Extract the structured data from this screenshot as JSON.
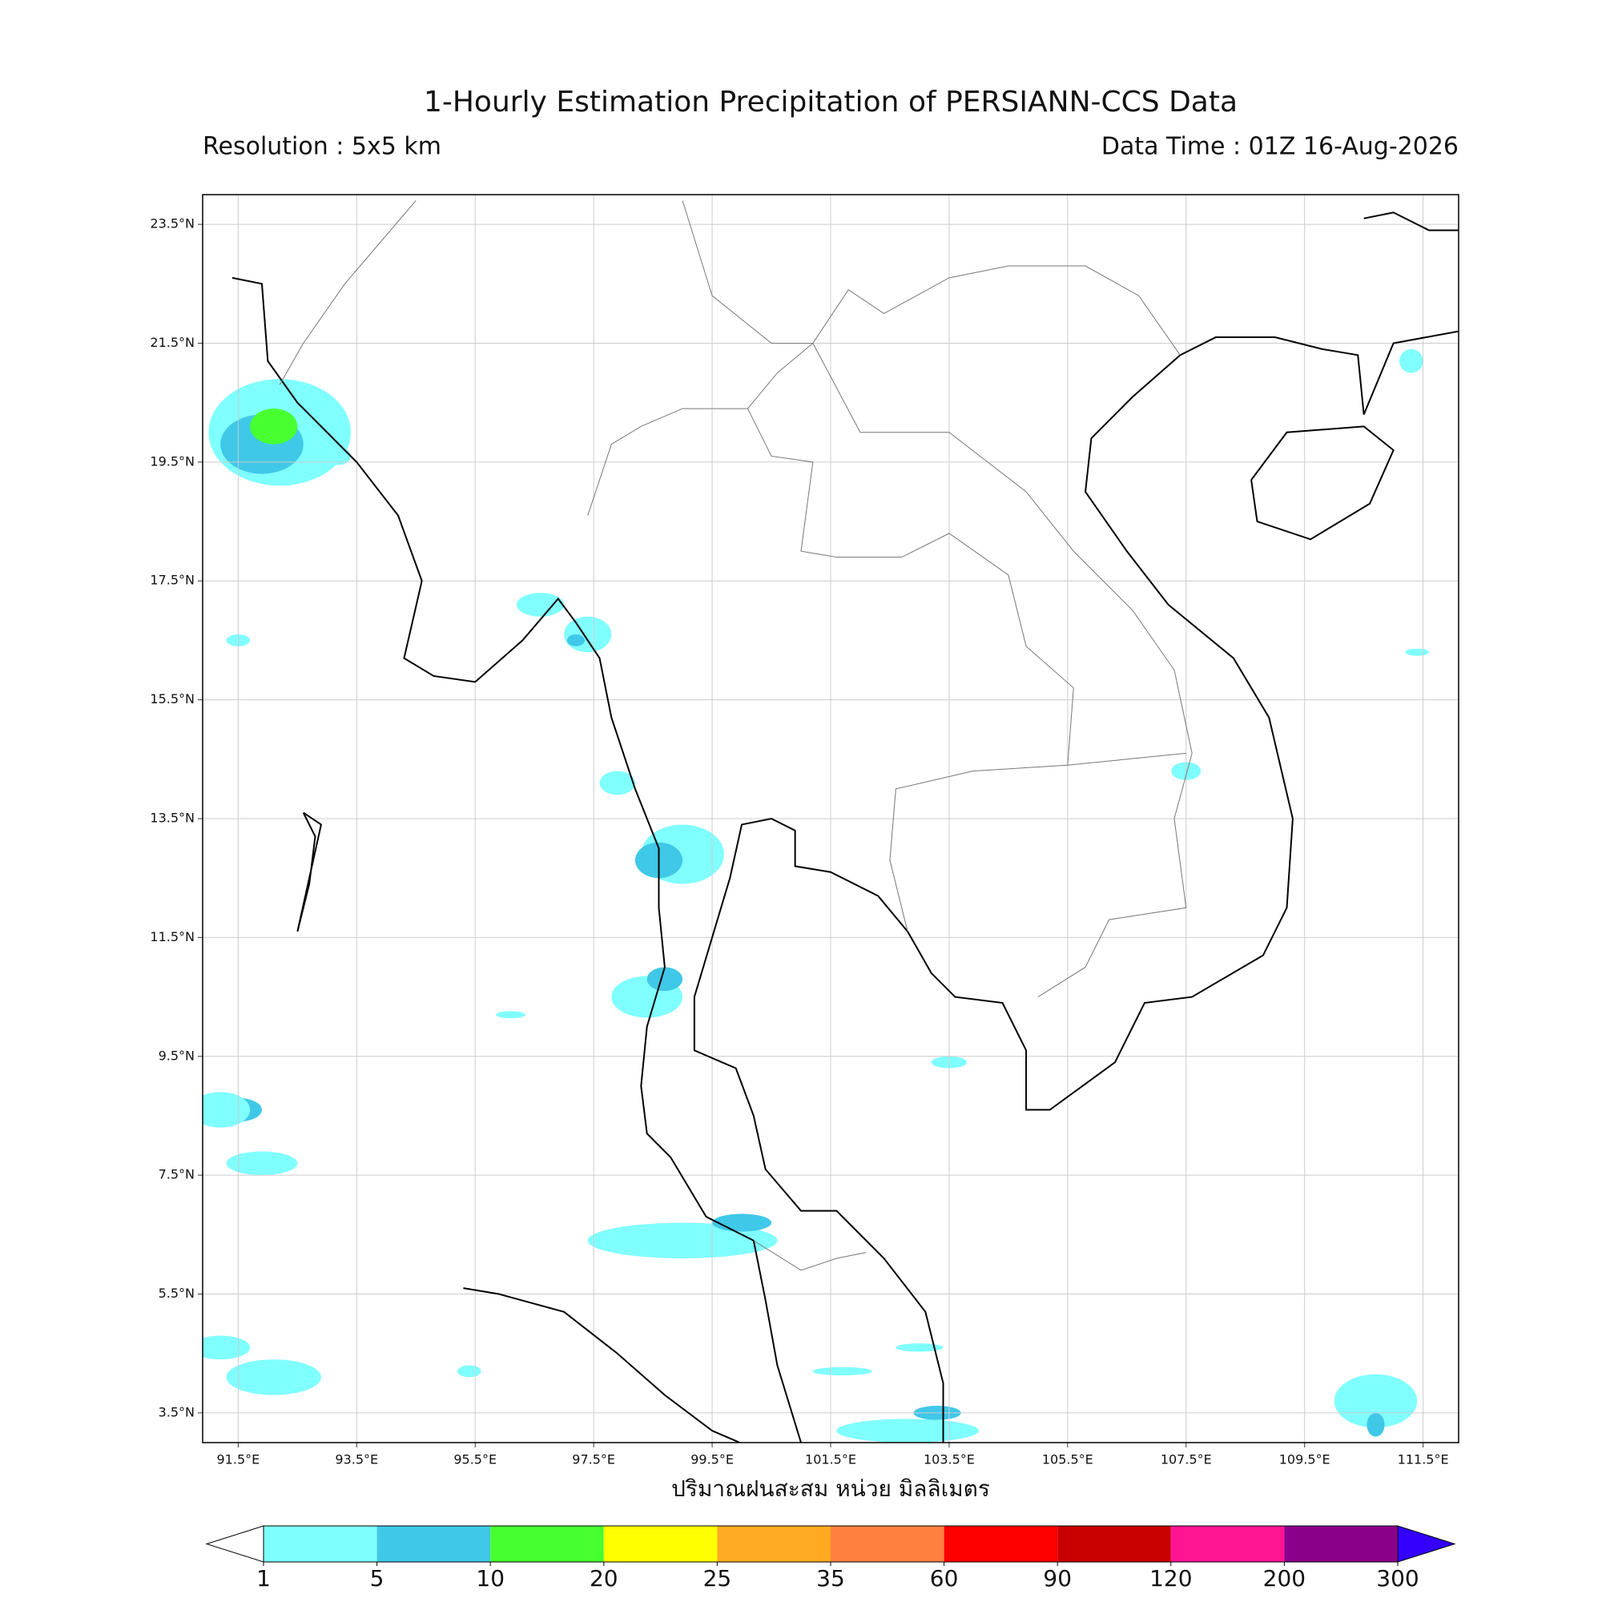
{
  "header": {
    "title": "1-Hourly Estimation Precipitation of PERSIANN-CCS Data",
    "resolution": "Resolution : 5x5 km",
    "data_time": "Data Time : 01Z 16-Aug-2026"
  },
  "map": {
    "lon_range": [
      90.9,
      112.1
    ],
    "lat_range": [
      3.0,
      24.0
    ],
    "lon_ticks": [
      {
        "value": 91.5,
        "label": "91.5°E"
      },
      {
        "value": 93.5,
        "label": "93.5°E"
      },
      {
        "value": 95.5,
        "label": "95.5°E"
      },
      {
        "value": 97.5,
        "label": "97.5°E"
      },
      {
        "value": 99.5,
        "label": "99.5°E"
      },
      {
        "value": 101.5,
        "label": "101.5°E"
      },
      {
        "value": 103.5,
        "label": "103.5°E"
      },
      {
        "value": 105.5,
        "label": "105.5°E"
      },
      {
        "value": 107.5,
        "label": "107.5°E"
      },
      {
        "value": 109.5,
        "label": "109.5°E"
      },
      {
        "value": 111.5,
        "label": "111.5°E"
      }
    ],
    "lat_ticks": [
      {
        "value": 3.5,
        "label": "3.5°N"
      },
      {
        "value": 5.5,
        "label": "5.5°N"
      },
      {
        "value": 7.5,
        "label": "7.5°N"
      },
      {
        "value": 9.5,
        "label": "9.5°N"
      },
      {
        "value": 11.5,
        "label": "11.5°N"
      },
      {
        "value": 13.5,
        "label": "13.5°N"
      },
      {
        "value": 15.5,
        "label": "15.5°N"
      },
      {
        "value": 17.5,
        "label": "17.5°N"
      },
      {
        "value": 19.5,
        "label": "19.5°N"
      },
      {
        "value": 21.5,
        "label": "21.5°N"
      },
      {
        "value": 23.5,
        "label": "23.5°N"
      }
    ]
  },
  "colorbar": {
    "label": "ปริมาณฝนสะสม หน่วย มิลลิเมตร",
    "levels": [
      1,
      5,
      10,
      20,
      25,
      35,
      60,
      90,
      120,
      200,
      300
    ],
    "colors": [
      "#80ffff",
      "#40c8e8",
      "#48ff30",
      "#ffff00",
      "#ffaa20",
      "#ff8040",
      "#ff0000",
      "#c80000",
      "#ff1493",
      "#8b008b"
    ],
    "under_color": "#ffffff",
    "over_color": "#3300ff"
  }
}
